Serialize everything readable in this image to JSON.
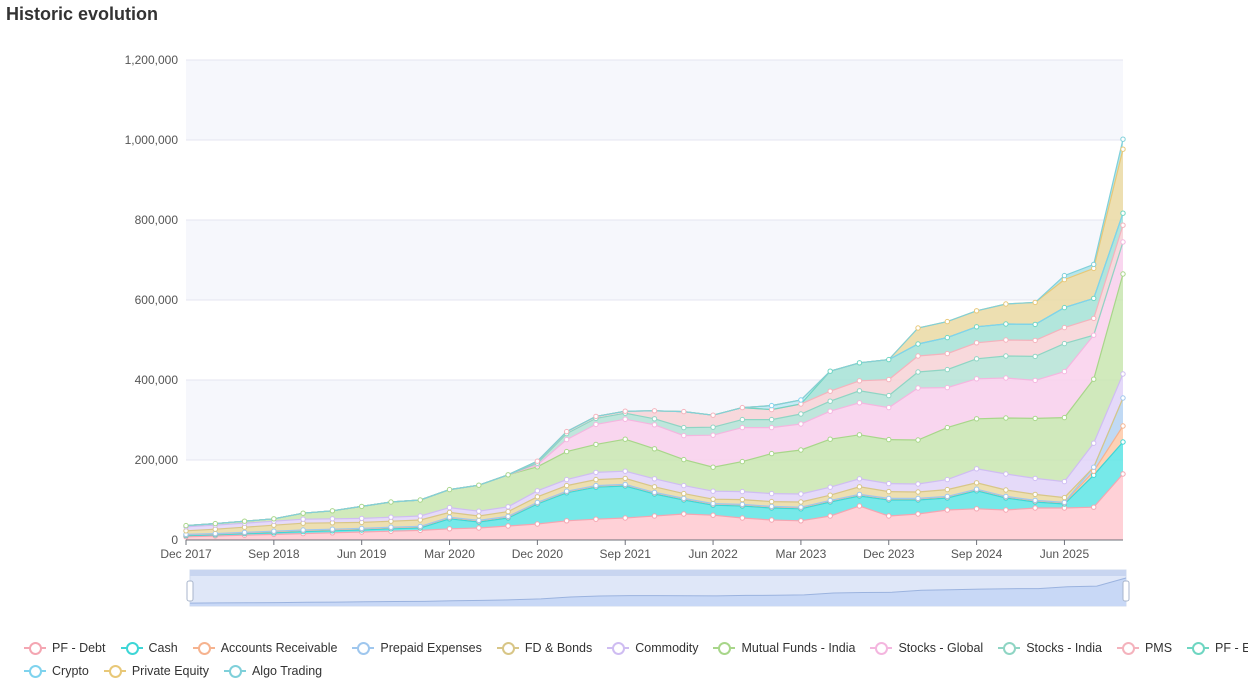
{
  "title": "Historic evolution",
  "chart_data": {
    "type": "area",
    "stacked": true,
    "grid": true,
    "legend_position": "bottom",
    "dataZoom_slider": true,
    "x_tick_labels": [
      "Dec 2017",
      "Sep 2018",
      "Jun 2019",
      "Mar 2020",
      "Dec 2020",
      "Sep 2021",
      "Jun 2022",
      "Mar 2023",
      "Dec 2023",
      "Sep 2024",
      "Jun 2025"
    ],
    "y_tick_labels": [
      "0",
      "200,000",
      "400,000",
      "600,000",
      "800,000",
      "1,000,000",
      "1,200,000"
    ],
    "ylim": [
      0,
      1200000
    ],
    "x": [
      "Dec 2017",
      "Mar 2018",
      "Jun 2018",
      "Sep 2018",
      "Dec 2018",
      "Mar 2019",
      "Jun 2019",
      "Sep 2019",
      "Dec 2019",
      "Mar 2020",
      "Jun 2020",
      "Sep 2020",
      "Dec 2020",
      "Mar 2021",
      "Jun 2021",
      "Sep 2021",
      "Dec 2021",
      "Mar 2022",
      "Jun 2022",
      "Sep 2022",
      "Dec 2022",
      "Mar 2023",
      "Jun 2023",
      "Sep 2023",
      "Dec 2023",
      "Mar 2024",
      "Jun 2024",
      "Sep 2024",
      "Dec 2024",
      "Mar 2025",
      "Jun 2025",
      "Sep 2025",
      "Dec 2025"
    ],
    "series": [
      {
        "name": "PF - Debt",
        "color": "#ffc9d0",
        "values": [
          8000,
          10000,
          12000,
          14000,
          16000,
          18000,
          20000,
          22000,
          24000,
          28000,
          30000,
          35000,
          40000,
          48000,
          52000,
          55000,
          60000,
          65000,
          62000,
          55000,
          50000,
          48000,
          60000,
          85000,
          60000,
          65000,
          75000,
          78000,
          75000,
          80000,
          80000,
          82000,
          165000
        ]
      },
      {
        "name": "Cash",
        "color": "#5ee5e5",
        "values": [
          3000,
          3000,
          4000,
          4000,
          5000,
          5000,
          5000,
          6000,
          6000,
          25000,
          15000,
          20000,
          50000,
          70000,
          80000,
          80000,
          55000,
          35000,
          25000,
          30000,
          30000,
          30000,
          35000,
          25000,
          40000,
          35000,
          30000,
          45000,
          30000,
          15000,
          10000,
          80000,
          80000
        ]
      },
      {
        "name": "Accounts Receivable",
        "color": "#ffcaa8",
        "values": [
          2000,
          2000,
          2000,
          3000,
          3000,
          3000,
          3000,
          3000,
          3000,
          3000,
          3000,
          3000,
          3000,
          3000,
          3000,
          3000,
          3000,
          3000,
          3000,
          3000,
          3000,
          3000,
          3000,
          3000,
          3000,
          3000,
          3000,
          3000,
          3000,
          3000,
          3000,
          10000,
          40000
        ]
      },
      {
        "name": "Prepaid Expenses",
        "color": "#b6d4f2",
        "values": [
          1000,
          1000,
          1000,
          1000,
          1000,
          1000,
          1000,
          1000,
          1000,
          1000,
          1000,
          1000,
          1000,
          1000,
          1000,
          1000,
          1000,
          1000,
          1000,
          1000,
          1000,
          1000,
          1000,
          1000,
          1000,
          1000,
          1000,
          1000,
          1000,
          1000,
          1000,
          10000,
          70000
        ]
      },
      {
        "name": "FD & Bonds",
        "color": "#ead9a3",
        "values": [
          9000,
          11000,
          13000,
          15000,
          17000,
          16000,
          15000,
          15000,
          16000,
          12000,
          11000,
          12000,
          14000,
          14000,
          15000,
          15000,
          14000,
          12000,
          11000,
          12000,
          12000,
          13000,
          13000,
          19000,
          17000,
          16000,
          17000,
          16000,
          16000,
          15000,
          12000,
          0,
          0
        ]
      },
      {
        "name": "Commodity",
        "color": "#e0d3f8",
        "values": [
          10000,
          10000,
          10000,
          10000,
          10000,
          10000,
          10000,
          10000,
          10000,
          12000,
          12000,
          12000,
          15000,
          15000,
          18000,
          18000,
          20000,
          20000,
          20000,
          20000,
          20000,
          20000,
          20000,
          20000,
          20000,
          20000,
          25000,
          35000,
          40000,
          40000,
          40000,
          60000,
          60000
        ]
      },
      {
        "name": "Mutual Funds - India",
        "color": "#c9e6b0",
        "values": [
          3000,
          4000,
          5000,
          6000,
          15000,
          20000,
          30000,
          38000,
          40000,
          45000,
          65000,
          80000,
          60000,
          70000,
          70000,
          80000,
          75000,
          65000,
          60000,
          75000,
          100000,
          110000,
          120000,
          110000,
          110000,
          110000,
          130000,
          125000,
          140000,
          150000,
          160000,
          160000,
          250000
        ]
      },
      {
        "name": "Stocks - Global",
        "color": "#f9d0ec",
        "values": [
          0,
          0,
          0,
          0,
          0,
          0,
          0,
          0,
          0,
          0,
          0,
          0,
          5000,
          30000,
          50000,
          50000,
          60000,
          60000,
          80000,
          85000,
          65000,
          65000,
          70000,
          80000,
          80000,
          130000,
          100000,
          100000,
          100000,
          95000,
          115000,
          110000,
          80000
        ]
      },
      {
        "name": "Stocks - India",
        "color": "#b5e3d6",
        "values": [
          0,
          0,
          0,
          0,
          0,
          0,
          0,
          0,
          0,
          0,
          0,
          0,
          4000,
          15000,
          15000,
          15000,
          15000,
          20000,
          20000,
          20000,
          20000,
          25000,
          25000,
          30000,
          30000,
          40000,
          45000,
          50000,
          55000,
          60000,
          70000,
          0,
          0
        ]
      },
      {
        "name": "PMS",
        "color": "#f7d2d6",
        "values": [
          0,
          0,
          0,
          0,
          0,
          0,
          0,
          0,
          0,
          0,
          0,
          0,
          5000,
          5000,
          5000,
          5000,
          20000,
          40000,
          30000,
          30000,
          25000,
          25000,
          25000,
          25000,
          40000,
          40000,
          40000,
          40000,
          40000,
          40000,
          40000,
          42000,
          42000
        ]
      },
      {
        "name": "PF - Equity",
        "color": "#a5e2d6",
        "values": [
          0,
          0,
          0,
          0,
          0,
          0,
          0,
          0,
          0,
          0,
          0,
          0,
          0,
          0,
          0,
          0,
          0,
          0,
          0,
          0,
          0,
          0,
          50000,
          45000,
          50000,
          30000,
          40000,
          40000,
          40000,
          40000,
          50000,
          50000,
          30000
        ]
      },
      {
        "name": "Crypto",
        "color": "#bde9f6",
        "values": [
          0,
          0,
          0,
          0,
          0,
          0,
          0,
          0,
          0,
          0,
          0,
          0,
          0,
          0,
          0,
          0,
          0,
          0,
          0,
          0,
          10000,
          10000,
          0,
          0,
          0,
          0,
          0,
          0,
          0,
          0,
          0,
          0,
          0
        ]
      },
      {
        "name": "Private Equity",
        "color": "#ead9a3",
        "values": [
          0,
          0,
          0,
          0,
          0,
          0,
          0,
          0,
          0,
          0,
          0,
          0,
          0,
          0,
          0,
          0,
          0,
          0,
          0,
          0,
          0,
          0,
          0,
          0,
          0,
          40000,
          40000,
          40000,
          50000,
          55000,
          70000,
          75000,
          160000
        ]
      },
      {
        "name": "Algo Trading",
        "color": "#a9e2e8",
        "values": [
          0,
          0,
          0,
          0,
          0,
          0,
          0,
          0,
          0,
          0,
          0,
          0,
          0,
          0,
          0,
          0,
          0,
          0,
          0,
          0,
          0,
          0,
          0,
          0,
          0,
          0,
          0,
          0,
          0,
          0,
          10000,
          10000,
          25000
        ]
      }
    ]
  },
  "legend": {
    "items": [
      {
        "name": "PF - Debt",
        "stroke": "#f4a6b2"
      },
      {
        "name": "Cash",
        "stroke": "#3ed6d6"
      },
      {
        "name": "Accounts Receivable",
        "stroke": "#f6b38f"
      },
      {
        "name": "Prepaid Expenses",
        "stroke": "#9fc7ee"
      },
      {
        "name": "FD & Bonds",
        "stroke": "#d8c687"
      },
      {
        "name": "Commodity",
        "stroke": "#cfbdf2"
      },
      {
        "name": "Mutual Funds - India",
        "stroke": "#a8d68a"
      },
      {
        "name": "Stocks - Global",
        "stroke": "#f4b6df"
      },
      {
        "name": "Stocks - India",
        "stroke": "#8fd5c4"
      },
      {
        "name": "PMS",
        "stroke": "#f4b3bd"
      },
      {
        "name": "PF - Equity",
        "stroke": "#6fd6c2"
      },
      {
        "name": "Crypto",
        "stroke": "#7fd3ee"
      },
      {
        "name": "Private Equity",
        "stroke": "#e8c878"
      },
      {
        "name": "Algo Trading",
        "stroke": "#7fd0da"
      }
    ]
  }
}
